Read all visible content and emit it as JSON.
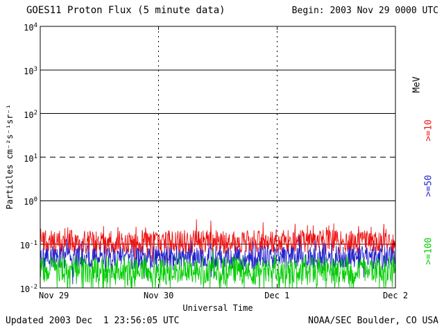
{
  "page": {
    "title": "GOES11 Proton Flux (5 minute data)",
    "begin_label": "Begin: 2003 Nov 29 0000 UTC",
    "updated_label": "Updated 2003 Dec  1 23:56:05 UTC",
    "credit_label": "NOAA/SEC Boulder, CO USA"
  },
  "chart_data": {
    "type": "line",
    "title": "GOES11 Proton Flux (5 minute data)",
    "xlabel": "Universal Time",
    "ylabel": "Particles cm⁻²s⁻¹sr⁻¹",
    "x_range_days": [
      0,
      3
    ],
    "y_log_range": [
      -2,
      4
    ],
    "x_ticks": [
      {
        "label": "Nov 29",
        "day": 0
      },
      {
        "label": "Nov 30",
        "day": 1
      },
      {
        "label": "Dec 1",
        "day": 2
      },
      {
        "label": "Dec 2",
        "day": 3
      }
    ],
    "y_tick_exponents": [
      4,
      3,
      2,
      1,
      0,
      -1,
      -2
    ],
    "grid": {
      "hlines": [
        {
          "exp": 3,
          "style": "solid"
        },
        {
          "exp": 2,
          "style": "solid"
        },
        {
          "exp": 1,
          "style": "dashed"
        },
        {
          "exp": 0,
          "style": "solid"
        },
        {
          "exp": -1,
          "style": "solid"
        }
      ],
      "vlines": [
        {
          "day": 1,
          "style": "dotted"
        },
        {
          "day": 2,
          "style": "dotted"
        }
      ]
    },
    "right_axis": {
      "unit_label": "MeV",
      "unit_color": "#000000"
    },
    "clip_min_exp": -2,
    "series": [
      {
        "name": ">=10",
        "unit": "MeV",
        "color": "#ee1111",
        "points_per_day": 288,
        "log10_mean": -0.95,
        "log10_jitter": 0.28,
        "up_spike_prob": 0.08,
        "up_spike_amp": 0.4,
        "down_spike_prob": 0.05,
        "down_spike_amp": 0.3
      },
      {
        "name": ">=50",
        "unit": "MeV",
        "color": "#2222cc",
        "points_per_day": 288,
        "log10_mean": -1.3,
        "log10_jitter": 0.27,
        "up_spike_prob": 0.05,
        "up_spike_amp": 0.3,
        "down_spike_prob": 0.08,
        "down_spike_amp": 0.45
      },
      {
        "name": ">=100",
        "unit": "MeV",
        "color": "#00cc00",
        "points_per_day": 288,
        "log10_mean": -1.58,
        "log10_jitter": 0.3,
        "up_spike_prob": 0.05,
        "up_spike_amp": 0.3,
        "down_spike_prob": 0.22,
        "down_spike_amp": 0.5
      }
    ]
  }
}
